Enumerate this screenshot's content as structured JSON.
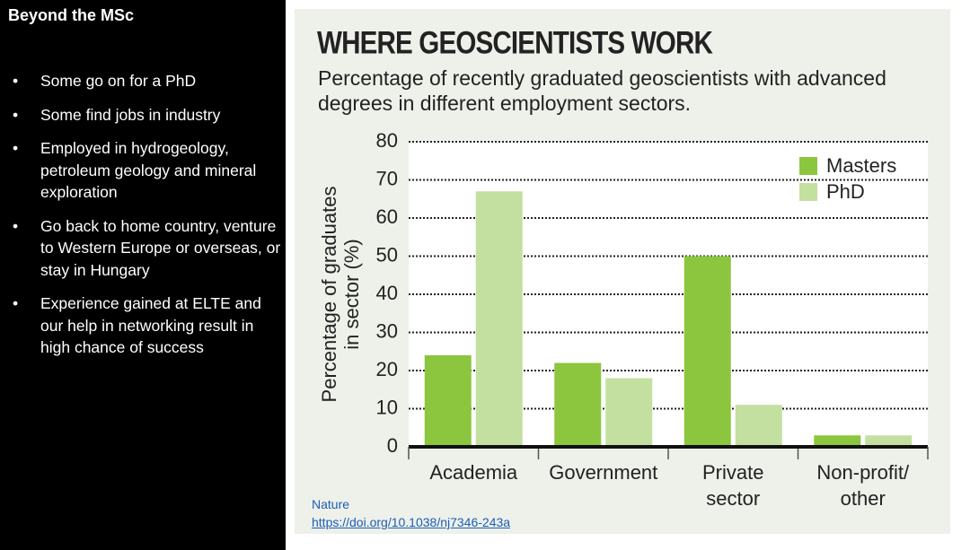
{
  "slide": {
    "title": "Beyond the MSc",
    "bullets": [
      "Some go on for a PhD",
      "Some find jobs in industry",
      "Employed in hydrogeology, petroleum geology and mineral exploration",
      "Go back to home country, venture to Western Europe or overseas, or stay in Hungary",
      "Experience gained at ELTE and our help in networking result in high chance of success"
    ],
    "source": "Nature",
    "link": "https://doi.org/10.1038/nj7346-243a"
  },
  "chart_data": {
    "type": "bar",
    "title": "WHERE GEOSCIENTISTS WORK",
    "subtitle": "Percentage of recently graduated geoscientists with advanced degrees in different employment sectors.",
    "y_label": "Percentage of graduates in sector (%)",
    "categories": [
      "Academia",
      "Government",
      "Private sector",
      "Non-profit/ other"
    ],
    "series": [
      {
        "name": "Masters",
        "color": "#8cc63f",
        "values": [
          24,
          22,
          50,
          3
        ]
      },
      {
        "name": "PhD",
        "color": "#c3e0a0",
        "values": [
          67,
          18,
          11,
          3
        ]
      }
    ],
    "ylim": [
      0,
      80
    ],
    "yticks": [
      0,
      10,
      20,
      30,
      40,
      50,
      60,
      70,
      80
    ],
    "grid": true,
    "legend": "top-right"
  }
}
